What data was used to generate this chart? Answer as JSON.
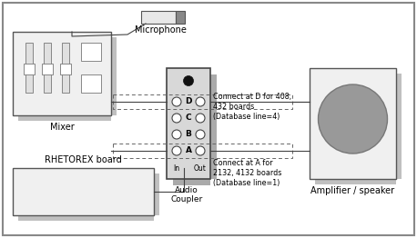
{
  "mixer_label": "Mixer",
  "rhetorex_label": "RHETOREX board",
  "mic_label": "Microphone",
  "coupler_label": "Audio\nCoupler",
  "amp_label": "Amplifier / speaker",
  "connect_d_label": "Connect at D for 408,\n432 boards\n(Database line=4)",
  "connect_a_label": "Connect at A for\n2132, 4132 boards\n(Database line=1)",
  "in_label": "In",
  "out_label": "Out",
  "port_labels": [
    "D",
    "C",
    "B",
    "A"
  ]
}
